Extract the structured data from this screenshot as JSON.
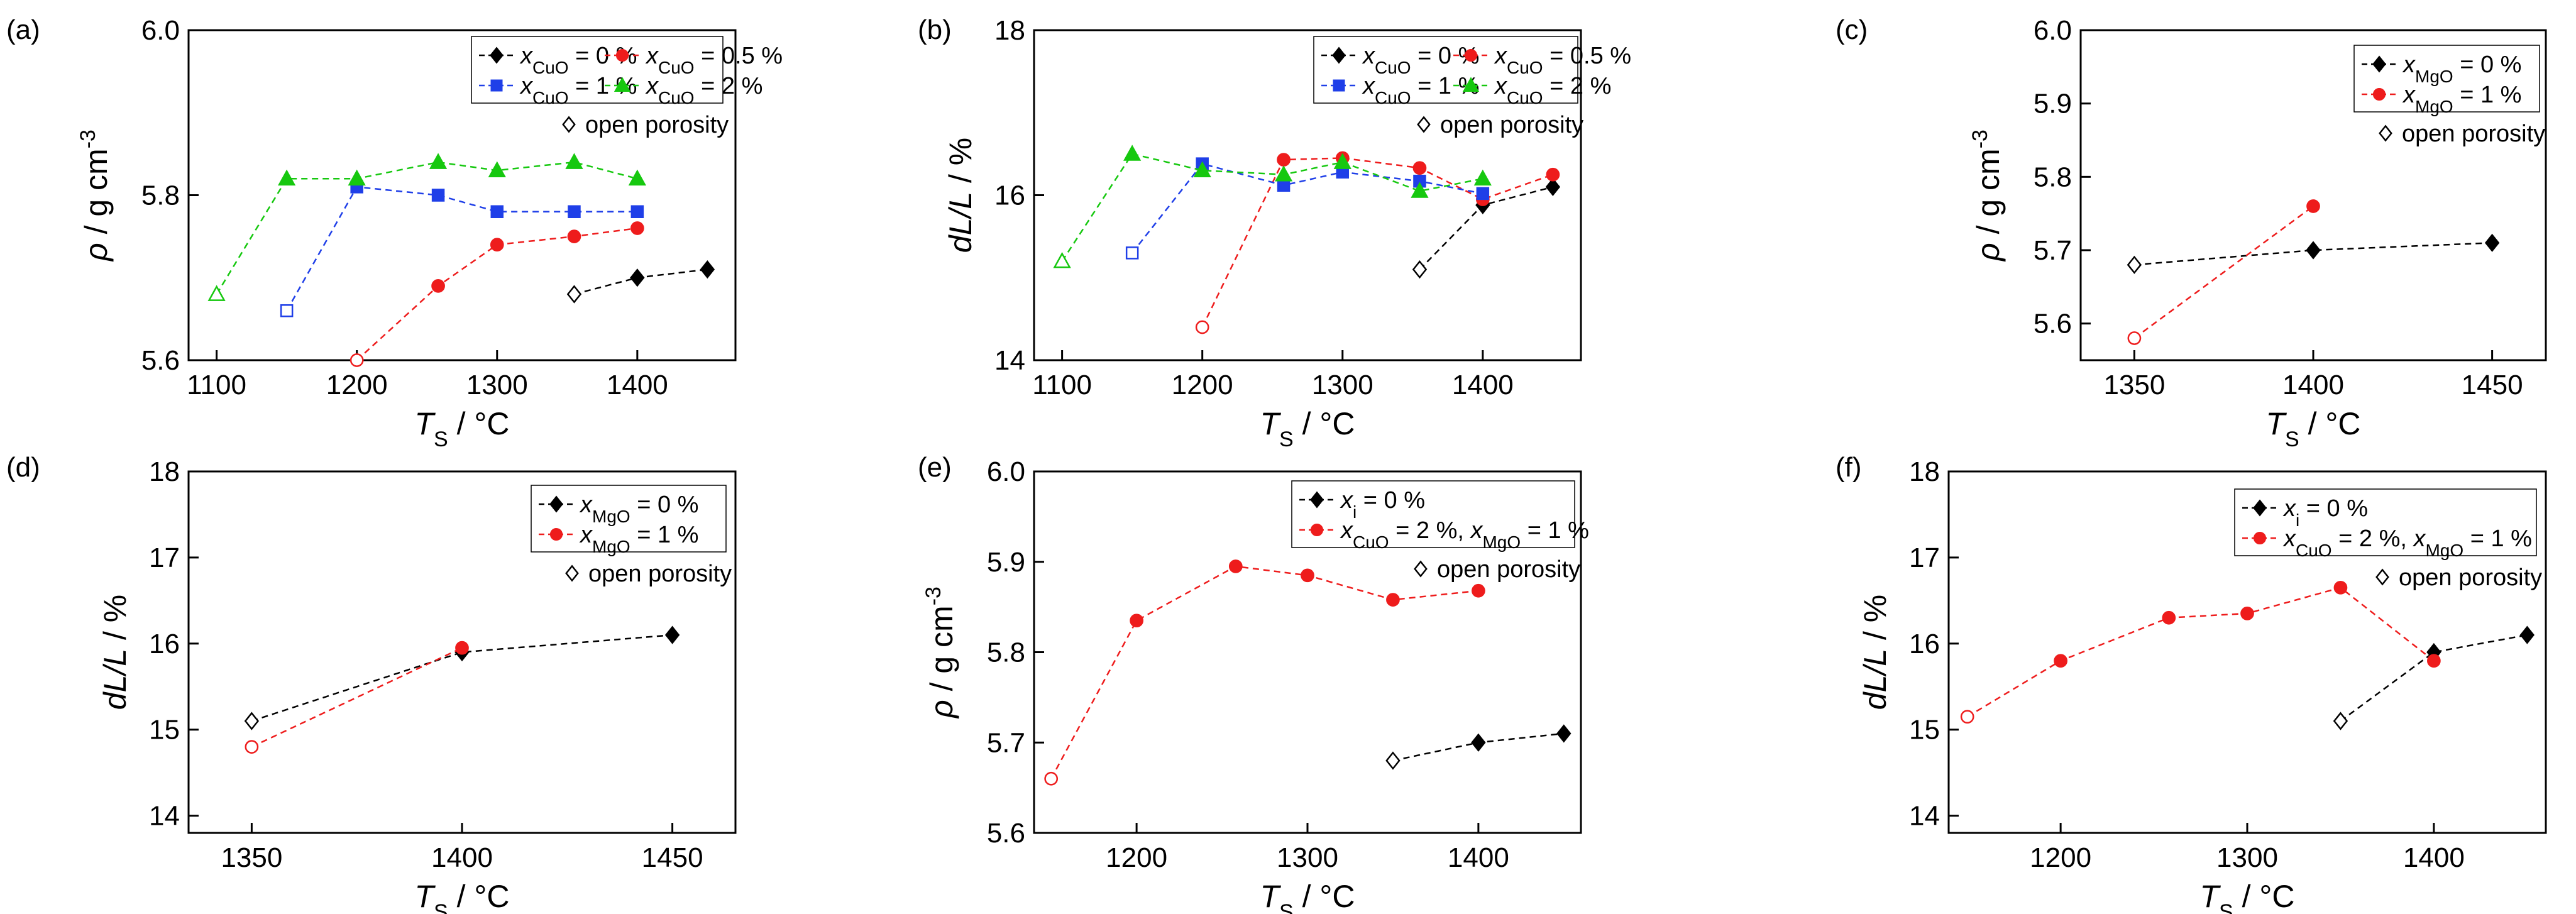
{
  "chart_data": [
    {
      "panel": "(a)",
      "type": "line",
      "xlabel": {
        "main": "T",
        "sub": "S",
        "unit": " / °C"
      },
      "ylabel": {
        "main": "ρ",
        "unit": " / g cm",
        "sup": "-3"
      },
      "xlim": [
        1080,
        1470
      ],
      "ylim": [
        5.6,
        6.0
      ],
      "xticks": [
        1100,
        1200,
        1300,
        1400
      ],
      "yticks": [
        5.6,
        5.8,
        6.0
      ],
      "ydec": 1,
      "legend": {
        "cols": 2,
        "show_porosity": true
      },
      "porosity_label": "open porosity",
      "series": [
        {
          "pre": "x",
          "sub": "CuO",
          "post": " = 0 %",
          "color": "#000000",
          "marker": "diamond",
          "x": [
            1355,
            1400,
            1450
          ],
          "y": [
            5.68,
            5.7,
            5.71
          ]
        },
        {
          "pre": "x",
          "sub": "CuO",
          "post": " = 0.5 %",
          "color": "#ee1c1c",
          "marker": "circle",
          "x": [
            1200,
            1258,
            1300,
            1355,
            1400
          ],
          "y": [
            5.6,
            5.69,
            5.74,
            5.75,
            5.76
          ]
        },
        {
          "pre": "x",
          "sub": "CuO",
          "post": " = 1 %",
          "color": "#1f3fe8",
          "marker": "square",
          "x": [
            1150,
            1200,
            1258,
            1300,
            1355,
            1400
          ],
          "y": [
            5.66,
            5.81,
            5.8,
            5.78,
            5.78,
            5.78
          ]
        },
        {
          "pre": "x",
          "sub": "CuO",
          "post": " = 2 %",
          "color": "#16c80f",
          "marker": "triangle",
          "x": [
            1100,
            1150,
            1200,
            1258,
            1300,
            1355,
            1400
          ],
          "y": [
            5.68,
            5.82,
            5.82,
            5.84,
            5.83,
            5.84,
            5.82
          ]
        }
      ]
    },
    {
      "panel": "(b)",
      "type": "line",
      "xlabel": {
        "main": "T",
        "sub": "S",
        "unit": " / °C"
      },
      "ylabel": {
        "main": "dL/L",
        "unit": " / %",
        "sup": ""
      },
      "xlim": [
        1080,
        1470
      ],
      "ylim": [
        14,
        18
      ],
      "xticks": [
        1100,
        1200,
        1300,
        1400
      ],
      "yticks": [
        14,
        16,
        18
      ],
      "ydec": 0,
      "legend": {
        "cols": 2,
        "show_porosity": true
      },
      "porosity_label": "open porosity",
      "series": [
        {
          "pre": "x",
          "sub": "CuO",
          "post": " = 0 %",
          "color": "#000000",
          "marker": "diamond",
          "x": [
            1355,
            1400,
            1450
          ],
          "y": [
            15.1,
            15.88,
            16.1
          ]
        },
        {
          "pre": "x",
          "sub": "CuO",
          "post": " = 0.5 %",
          "color": "#ee1c1c",
          "marker": "circle",
          "x": [
            1200,
            1258,
            1300,
            1355,
            1400,
            1450
          ],
          "y": [
            14.4,
            16.43,
            16.45,
            16.33,
            15.95,
            16.25
          ]
        },
        {
          "pre": "x",
          "sub": "CuO",
          "post": " = 1 %",
          "color": "#1f3fe8",
          "marker": "square",
          "x": [
            1150,
            1200,
            1258,
            1300,
            1355,
            1400
          ],
          "y": [
            15.3,
            16.38,
            16.12,
            16.28,
            16.17,
            16.02
          ]
        },
        {
          "pre": "x",
          "sub": "CuO",
          "post": " = 2 %",
          "color": "#16c80f",
          "marker": "triangle",
          "x": [
            1100,
            1150,
            1200,
            1258,
            1300,
            1355,
            1400
          ],
          "y": [
            15.2,
            16.5,
            16.3,
            16.25,
            16.4,
            16.05,
            16.2
          ]
        }
      ]
    },
    {
      "panel": "(c)",
      "type": "line",
      "xlabel": {
        "main": "T",
        "sub": "S",
        "unit": " / °C"
      },
      "ylabel": {
        "main": "ρ",
        "unit": " / g cm",
        "sup": "-3"
      },
      "xlim": [
        1335,
        1465
      ],
      "ylim": [
        5.55,
        6.0
      ],
      "xticks": [
        1350,
        1400,
        1450
      ],
      "yticks": [
        5.6,
        5.7,
        5.8,
        5.9,
        6.0
      ],
      "ydec": 1,
      "legend": {
        "cols": 1,
        "show_porosity": true
      },
      "porosity_label": "open porosity",
      "series": [
        {
          "pre": "x",
          "sub": "MgO",
          "post": " = 0 %",
          "color": "#000000",
          "marker": "diamond",
          "x": [
            1350,
            1400,
            1450
          ],
          "y": [
            5.68,
            5.7,
            5.71
          ]
        },
        {
          "pre": "x",
          "sub": "MgO",
          "post": " = 1 %",
          "color": "#ee1c1c",
          "marker": "circle",
          "x": [
            1350,
            1400
          ],
          "y": [
            5.58,
            5.76
          ]
        }
      ]
    },
    {
      "panel": "(d)",
      "type": "line",
      "xlabel": {
        "main": "T",
        "sub": "S",
        "unit": " / °C"
      },
      "ylabel": {
        "main": "dL/L",
        "unit": " / %",
        "sup": ""
      },
      "xlim": [
        1335,
        1465
      ],
      "ylim": [
        13.8,
        18
      ],
      "xticks": [
        1350,
        1400,
        1450
      ],
      "yticks": [
        14,
        15,
        16,
        17,
        18
      ],
      "ydec": 0,
      "legend": {
        "cols": 1,
        "show_porosity": true
      },
      "porosity_label": "open porosity",
      "series": [
        {
          "pre": "x",
          "sub": "MgO",
          "post": " = 0 %",
          "color": "#000000",
          "marker": "diamond",
          "x": [
            1350,
            1400,
            1450
          ],
          "y": [
            15.1,
            15.9,
            16.1
          ]
        },
        {
          "pre": "x",
          "sub": "MgO",
          "post": " = 1 %",
          "color": "#ee1c1c",
          "marker": "circle",
          "x": [
            1350,
            1400
          ],
          "y": [
            14.8,
            15.95
          ]
        }
      ]
    },
    {
      "panel": "(e)",
      "type": "line",
      "xlabel": {
        "main": "T",
        "sub": "S",
        "unit": " / °C"
      },
      "ylabel": {
        "main": "ρ",
        "unit": " / g cm",
        "sup": "-3"
      },
      "xlim": [
        1140,
        1460
      ],
      "ylim": [
        5.6,
        6.0
      ],
      "xticks": [
        1200,
        1300,
        1400
      ],
      "yticks": [
        5.6,
        5.7,
        5.8,
        5.9,
        6.0
      ],
      "ydec": 1,
      "legend": {
        "cols": 1,
        "show_porosity": true
      },
      "porosity_label": "open porosity",
      "series": [
        {
          "pre": "x",
          "sub": "i",
          "post": " = 0 %",
          "color": "#000000",
          "marker": "diamond",
          "x": [
            1350,
            1400,
            1450
          ],
          "y": [
            5.68,
            5.7,
            5.71
          ]
        },
        {
          "pre": "x",
          "sub": "CuO",
          "post": " = 2 %, ",
          "pre2": "x",
          "sub2": "MgO",
          "post2": " = 1 %",
          "color": "#ee1c1c",
          "marker": "circle",
          "x": [
            1150,
            1200,
            1258,
            1300,
            1350,
            1400
          ],
          "y": [
            5.66,
            5.835,
            5.895,
            5.885,
            5.858,
            5.868
          ]
        }
      ]
    },
    {
      "panel": "(f)",
      "type": "line",
      "xlabel": {
        "main": "T",
        "sub": "S",
        "unit": " / °C"
      },
      "ylabel": {
        "main": "dL/L",
        "unit": " / %",
        "sup": ""
      },
      "xlim": [
        1140,
        1460
      ],
      "ylim": [
        13.8,
        18
      ],
      "xticks": [
        1200,
        1300,
        1400
      ],
      "yticks": [
        14,
        15,
        16,
        17,
        18
      ],
      "ydec": 0,
      "legend": {
        "cols": 1,
        "show_porosity": true
      },
      "porosity_label": "open porosity",
      "series": [
        {
          "pre": "x",
          "sub": "i",
          "post": " = 0 %",
          "color": "#000000",
          "marker": "diamond",
          "x": [
            1350,
            1400,
            1450
          ],
          "y": [
            15.1,
            15.9,
            16.1
          ]
        },
        {
          "pre": "x",
          "sub": "CuO",
          "post": " = 2 %, ",
          "pre2": "x",
          "sub2": "MgO",
          "post2": " = 1 %",
          "color": "#ee1c1c",
          "marker": "circle",
          "x": [
            1150,
            1200,
            1258,
            1300,
            1350,
            1400
          ],
          "y": [
            15.15,
            15.8,
            16.3,
            16.35,
            16.65,
            15.8
          ]
        }
      ]
    }
  ]
}
